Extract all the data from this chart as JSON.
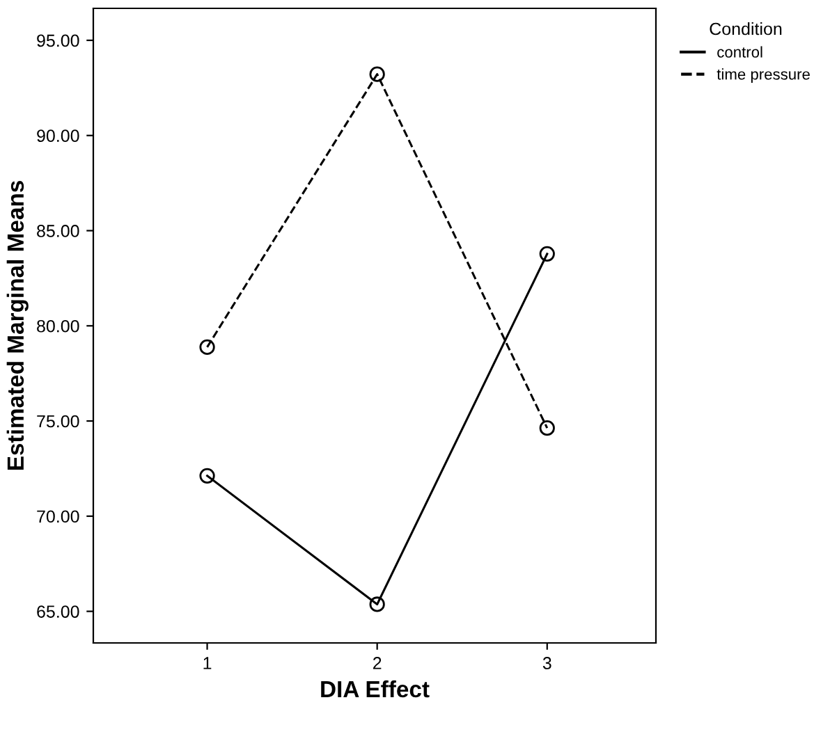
{
  "chart_data": {
    "type": "line",
    "xlabel": "DIA Effect",
    "ylabel": "Estimated Marginal Means",
    "legend_title": "Condition",
    "categories": [
      "1",
      "2",
      "3"
    ],
    "series": [
      {
        "name": "control",
        "color": "#000000",
        "line_style": "solid",
        "values": [
          72.12,
          65.37,
          83.78
        ]
      },
      {
        "name": "time pressure",
        "color": "#000000",
        "line_style": "dashed",
        "values": [
          78.88,
          93.22,
          74.63
        ]
      }
    ],
    "ylim": [
      63.34,
      96.68
    ],
    "yticks": [
      {
        "value": 65,
        "label": "65.00"
      },
      {
        "value": 70,
        "label": "70.00"
      },
      {
        "value": 75,
        "label": "75.00"
      },
      {
        "value": 80,
        "label": "80.00"
      },
      {
        "value": 85,
        "label": "85.00"
      },
      {
        "value": 90,
        "label": "90.00"
      },
      {
        "value": 95,
        "label": "95.00"
      }
    ],
    "marker": "circle",
    "grid": false,
    "legend": "top right"
  }
}
